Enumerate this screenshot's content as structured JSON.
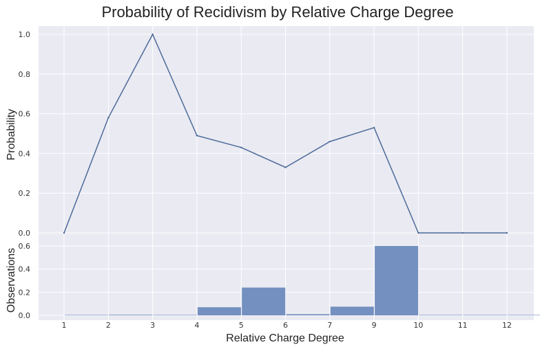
{
  "chart_data": {
    "type": "line",
    "title": "Probability of Recidivism by Relative Charge Degree",
    "xlabel": "Relative Charge Degree",
    "categories": [
      "1",
      "2",
      "3",
      "4",
      "5",
      "6",
      "7",
      "9",
      "10",
      "11",
      "12"
    ],
    "grid": true,
    "legend": "none",
    "panels": [
      {
        "type": "line",
        "ylabel": "Probability",
        "ylim": [
          0.0,
          1.0
        ],
        "yticks": [
          "0.0",
          "0.2",
          "0.4",
          "0.6",
          "0.8",
          "1.0"
        ],
        "values": [
          0.0,
          0.58,
          1.0,
          0.49,
          0.43,
          0.33,
          0.46,
          0.53,
          0.0,
          0.0,
          0.0
        ],
        "color": "#4c6a9a"
      },
      {
        "type": "bar",
        "ylabel": "Observations",
        "ylim": [
          0.0,
          0.6
        ],
        "yticks": [
          "0.0",
          "0.2",
          "0.4",
          "0.6"
        ],
        "values": [
          0.0,
          0.005,
          0.0,
          0.07,
          0.24,
          0.01,
          0.075,
          0.6,
          0.0,
          0.0,
          0.0
        ],
        "color": "#7490c0"
      }
    ]
  }
}
